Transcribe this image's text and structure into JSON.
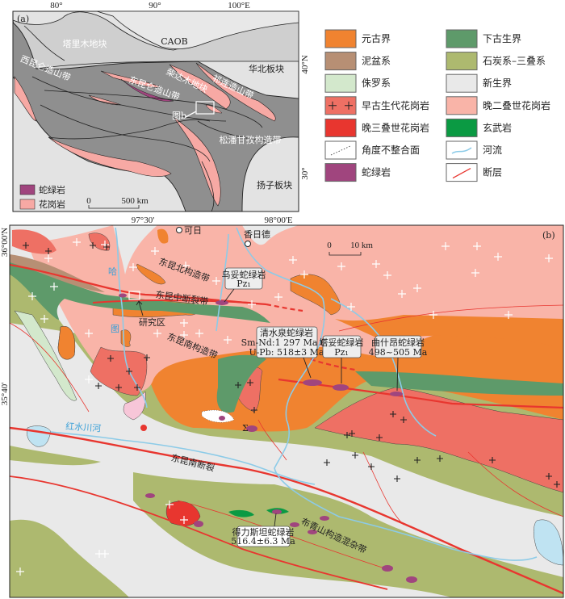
{
  "colors": {
    "proterozoic": "#f08330",
    "nipen": "#b78f74",
    "jurassic": "#d3e8cc",
    "early_paleozoic_granite": "#ee7064",
    "late_triassic_granite": "#e8362f",
    "unconformity": "#ffffff",
    "ophiolite": "#a0457e",
    "lower_paleozoic": "#5e9a6a",
    "carboniferous_triassic": "#adb96f",
    "cenozoic": "#e9e9e9",
    "late_permian_granite": "#f9b4a8",
    "basalt": "#0b9a43",
    "river": "#8ccbe8",
    "fault": "#e8362f"
  },
  "panel_a": {
    "tag": "(a)",
    "lon_ticks": [
      "80°",
      "90°",
      "100°E"
    ],
    "lat_ticks": [
      "40°N",
      "30°"
    ],
    "labels": {
      "tarim": "塔里木地块",
      "caob": "CAOB",
      "north_china": "华北板块",
      "west_kunlun": "西昆仑造山带",
      "east_kunlun": "东昆仑造山带",
      "qaidam": "柴达木地块",
      "qilian": "祁连造山带",
      "fig_b": "图b",
      "songpan": "松潘甘孜构造带",
      "yangtze": "扬子板块"
    },
    "legend": [
      {
        "label": "蛇绿岩",
        "icon": "ophiolite-swatch"
      },
      {
        "label": "花岗岩",
        "icon": "granite-swatch"
      }
    ],
    "scale": {
      "zero": "0",
      "length": "500 km"
    }
  },
  "legend": {
    "left": [
      {
        "label": "元古界",
        "icon": "proterozoic-swatch"
      },
      {
        "label": "泥盆系",
        "icon": "devonian-swatch"
      },
      {
        "label": "侏罗系",
        "icon": "jurassic-swatch"
      },
      {
        "label": "早古生代花岗岩",
        "icon": "early-paleozoic-granite-swatch"
      },
      {
        "label": "晚三叠世花岗岩",
        "icon": "late-triassic-granite-swatch"
      },
      {
        "label": "角度不整合面",
        "icon": "unconformity-line"
      },
      {
        "label": "蛇绿岩",
        "icon": "ophiolite-swatch"
      }
    ],
    "right": [
      {
        "label": "下古生界",
        "icon": "lower-paleozoic-swatch"
      },
      {
        "label": "石炭系–三叠系",
        "icon": "carboniferous-triassic-swatch"
      },
      {
        "label": "新生界",
        "icon": "cenozoic-swatch"
      },
      {
        "label": "晚二叠世花岗岩",
        "icon": "late-permian-granite-swatch"
      },
      {
        "label": "玄武岩",
        "icon": "basalt-swatch"
      },
      {
        "label": "河流",
        "icon": "river-line"
      },
      {
        "label": "断层",
        "icon": "fault-line"
      }
    ]
  },
  "panel_b": {
    "tag": "(b)",
    "lon_ticks": [
      "97°30'",
      "98°00'E"
    ],
    "lat_ticks": [
      "36°00'N",
      "35°40'"
    ],
    "towns": [
      "可日",
      "香日德"
    ],
    "scale": {
      "zero": "0",
      "length": "10 km"
    },
    "rivers": {
      "ha": "哈",
      "tu": "图",
      "hongshuichuan": "红水川河"
    },
    "labels": {
      "north_belt": "东昆北构造带",
      "middle_fault": "东昆中断裂带",
      "south_belt": "东昆南构造带",
      "study_area": "研究区",
      "south_fault": "东昆南断裂",
      "buqingshan": "布青山构造混杂带",
      "sigma": "Σ"
    },
    "callouts": {
      "wutuo": {
        "name": "乌妥蛇绿岩",
        "age": "Pz₁"
      },
      "qingshuiquan": {
        "name": "清水泉蛇绿岩",
        "age1": "Sm-Nd:1 297 Ma (?)",
        "age2": "U-Pb: 518±3 Ma"
      },
      "tatuo": {
        "name": "塔妥蛇绿岩",
        "age": "Pz₁"
      },
      "qushiang": {
        "name": "曲什昂蛇绿岩",
        "age": "498~505 Ma"
      },
      "delisitan": {
        "name": "得力斯坦蛇绿岩",
        "age": "516.4±6.3 Ma"
      }
    }
  }
}
